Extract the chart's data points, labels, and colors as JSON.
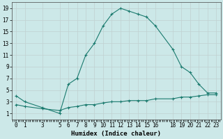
{
  "xlabel": "Humidex (Indice chaleur)",
  "x_main": [
    0,
    1,
    3,
    5,
    6,
    7,
    8,
    9,
    10,
    11,
    12,
    13,
    14,
    15,
    16,
    18,
    19,
    20,
    21,
    22,
    23
  ],
  "y_main": [
    4,
    3,
    2,
    1,
    6,
    7,
    11,
    13,
    16,
    18,
    19,
    18.5,
    18,
    17.5,
    16,
    12,
    9,
    8,
    6,
    4.5,
    4.5
  ],
  "x_flat": [
    0,
    1,
    3,
    5,
    6,
    7,
    8,
    9,
    10,
    11,
    12,
    13,
    14,
    15,
    16,
    18,
    19,
    20,
    21,
    22,
    23
  ],
  "y_flat": [
    2.5,
    2.2,
    1.8,
    1.5,
    2,
    2.2,
    2.5,
    2.5,
    2.8,
    3,
    3,
    3.2,
    3.2,
    3.2,
    3.5,
    3.5,
    3.8,
    3.8,
    4,
    4.2,
    4.2
  ],
  "line_color": "#1a7a6e",
  "bg_color": "#cce8e8",
  "grid_color": "#b0d8d8",
  "ylim": [
    0,
    20
  ],
  "xlim": [
    -0.5,
    23.5
  ],
  "yticks": [
    1,
    3,
    5,
    7,
    9,
    11,
    13,
    15,
    17,
    19
  ],
  "xticks": [
    0,
    1,
    3,
    5,
    6,
    7,
    8,
    9,
    10,
    11,
    12,
    13,
    14,
    15,
    16,
    18,
    19,
    20,
    21,
    22,
    23
  ],
  "tick_fontsize": 5.5,
  "xlabel_fontsize": 6.5
}
